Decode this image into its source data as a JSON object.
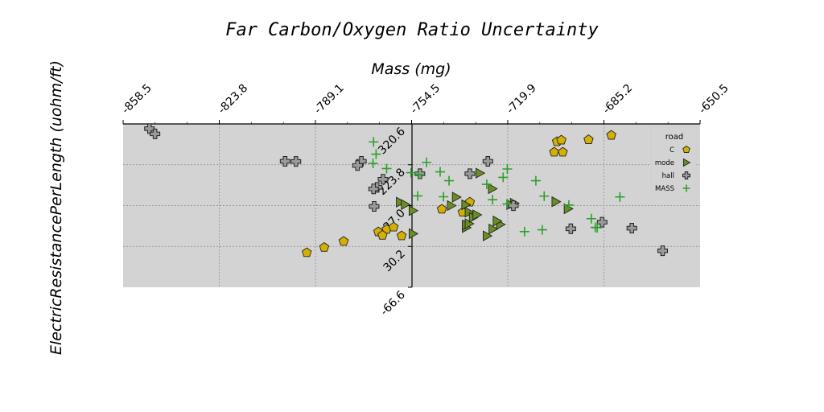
{
  "chart_data": {
    "type": "scatter",
    "title": "Far Carbon/Oxygen Ratio Uncertainty",
    "xlabel": "Mass (mg)",
    "ylabel": "ElectricResistancePerLength (uohm/ft)",
    "xlim": [
      -858.5,
      -650.5
    ],
    "ylim": [
      -66.6,
      320.6
    ],
    "x_ticks": [
      "-858.5",
      "-823.8",
      "-789.1",
      "-754.5",
      "-719.9",
      "-685.2",
      "-650.5"
    ],
    "y_ticks": [
      "-66.6",
      "30.2",
      "127.0",
      "223.8",
      "320.6"
    ],
    "grid": true,
    "legend": {
      "title": "road",
      "position": "top-right"
    },
    "series": [
      {
        "name": "C",
        "marker": "pentagon",
        "color": "#d4b000",
        "points": [
          [
            -743.6,
            118.5
          ],
          [
            -766.5,
            64.8
          ],
          [
            -763.5,
            70.6
          ],
          [
            -761.0,
            75.9
          ],
          [
            -758.1,
            55.3
          ],
          [
            -765.0,
            56.6
          ],
          [
            -779.0,
            42.3
          ],
          [
            -786.0,
            27.9
          ],
          [
            -792.3,
            15.5
          ],
          [
            -736.1,
            111.2
          ],
          [
            -733.5,
            135.2
          ],
          [
            -703.1,
            253.7
          ],
          [
            -700.0,
            253.7
          ],
          [
            -702.1,
            278.6
          ],
          [
            -700.5,
            282.2
          ],
          [
            -690.7,
            283.2
          ],
          [
            -682.5,
            293.7
          ]
        ]
      },
      {
        "name": "mode",
        "marker": "triangle-right",
        "color": "#6b8e23",
        "points": [
          [
            -758.6,
            135.2
          ],
          [
            -754.0,
            115.1
          ],
          [
            -754.0,
            60.5
          ],
          [
            -734.8,
            74.9
          ],
          [
            -734.8,
            81.1
          ],
          [
            -733.8,
            84.1
          ],
          [
            -733.8,
            111.2
          ],
          [
            -727.3,
            55.3
          ],
          [
            -725.4,
            167.1
          ],
          [
            -729.9,
            204.0
          ],
          [
            -732.3,
            99.0
          ],
          [
            -725.2,
            71.5
          ],
          [
            -722.5,
            82.2
          ],
          [
            -723.7,
            90.4
          ],
          [
            -740.2,
            127.0
          ],
          [
            -738.4,
            147.0
          ],
          [
            -698.1,
            119.5
          ],
          [
            -702.5,
            136.2
          ],
          [
            -717.5,
            132.6
          ],
          [
            -718.8,
            129.1
          ],
          [
            -731.0,
            105.0
          ],
          [
            -735.0,
            129.0
          ],
          [
            -756.8,
            129.5
          ]
        ]
      },
      {
        "name": "hall",
        "marker": "plus-filled",
        "color": "#666666",
        "points": [
          [
            -849.0,
            309.4
          ],
          [
            -800.1,
            232.0
          ],
          [
            -796.2,
            231.6
          ],
          [
            -772.6,
            232.0
          ],
          [
            -766.9,
            170.1
          ],
          [
            -768.2,
            166.6
          ],
          [
            -768.0,
            125.0
          ],
          [
            -774.0,
            222.0
          ],
          [
            -764.8,
            189.4
          ],
          [
            -751.5,
            202.6
          ],
          [
            -733.5,
            202.6
          ],
          [
            -717.8,
            126.7
          ],
          [
            -697.1,
            72.1
          ],
          [
            -685.8,
            87.6
          ],
          [
            -675.1,
            73.5
          ],
          [
            -664.0,
            20.0
          ],
          [
            -847.0,
            297.0
          ],
          [
            -727.0,
            232.0
          ]
        ]
      },
      {
        "name": "MASS",
        "marker": "plus",
        "color": "#2ca02c",
        "points": [
          [
            -767.3,
            249.0
          ],
          [
            -768.2,
            277.9
          ],
          [
            -768.4,
            227.1
          ],
          [
            -763.5,
            214.8
          ],
          [
            -754.7,
            205.0
          ],
          [
            -752.0,
            200.3
          ],
          [
            -749.1,
            229.5
          ],
          [
            -744.2,
            207.0
          ],
          [
            -743.0,
            148.0
          ],
          [
            -741.0,
            186.0
          ],
          [
            -727.4,
            177.5
          ],
          [
            -721.5,
            193.9
          ],
          [
            -720.0,
            213.8
          ],
          [
            -709.7,
            186.0
          ],
          [
            -706.7,
            149.4
          ],
          [
            -697.8,
            128.4
          ],
          [
            -689.7,
            96.0
          ],
          [
            -687.6,
            74.6
          ],
          [
            -679.4,
            147.6
          ],
          [
            -707.4,
            69.6
          ],
          [
            -688.3,
            75.3
          ],
          [
            -713.8,
            65.3
          ],
          [
            -720.0,
            131.0
          ],
          [
            -725.3,
            141.0
          ],
          [
            -752.3,
            150.0
          ]
        ]
      }
    ]
  }
}
